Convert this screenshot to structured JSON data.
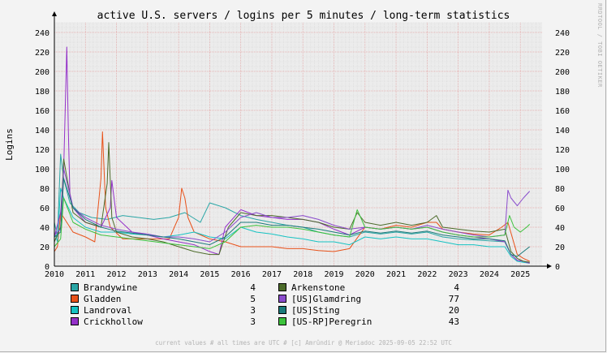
{
  "chart_data": {
    "type": "line",
    "title": "active U.S. servers / logins per 5 minutes / long-term statistics",
    "ylabel": "Logins",
    "ylim": [
      0,
      250
    ],
    "yticks": [
      0,
      20,
      40,
      60,
      80,
      100,
      120,
      140,
      160,
      180,
      200,
      220,
      240
    ],
    "xlim": [
      2010.0,
      2025.7
    ],
    "xticks": [
      2010,
      2011,
      2012,
      2013,
      2014,
      2015,
      2016,
      2017,
      2018,
      2019,
      2020,
      2021,
      2022,
      2023,
      2024,
      2025
    ],
    "xtick_labels": [
      "2010",
      "2011",
      "2012",
      "2013",
      "2014",
      "2015",
      "2016",
      "2017",
      "2018",
      "2019",
      "2020",
      "2021",
      "2022",
      "2023",
      "2024",
      "2025"
    ],
    "grid": true,
    "legend_position": "bottom",
    "series": [
      {
        "name": "Brandywine",
        "color": "#2aa6a6",
        "current": "4",
        "x": [
          2010.0,
          2010.1,
          2010.2,
          2010.3,
          2010.5,
          2010.8,
          2011.2,
          2011.7,
          2012.2,
          2012.7,
          2013.2,
          2013.7,
          2014.2,
          2014.7,
          2015.0,
          2015.5,
          2016.0,
          2016.5,
          2017.0,
          2017.5,
          2018.0,
          2018.5,
          2019.0,
          2019.5,
          2020.0,
          2020.5,
          2021.0,
          2021.5,
          2022.0,
          2022.5,
          2023.0,
          2023.5,
          2024.0,
          2024.5,
          2024.7,
          2024.9,
          2025.1,
          2025.3
        ],
        "y": [
          45,
          30,
          115,
          90,
          65,
          55,
          50,
          48,
          52,
          50,
          48,
          50,
          55,
          45,
          65,
          60,
          52,
          48,
          45,
          42,
          40,
          35,
          32,
          30,
          35,
          33,
          35,
          33,
          35,
          30,
          28,
          27,
          26,
          25,
          12,
          6,
          5,
          4
        ]
      },
      {
        "name": "Gladden",
        "color": "#e8521a",
        "current": "5",
        "x": [
          2010.0,
          2010.1,
          2010.2,
          2010.3,
          2010.4,
          2010.6,
          2011.0,
          2011.3,
          2011.5,
          2011.55,
          2011.65,
          2011.8,
          2012.2,
          2012.7,
          2013.2,
          2013.7,
          2014.0,
          2014.1,
          2014.2,
          2014.3,
          2014.5,
          2015.0,
          2015.5,
          2016.0,
          2016.5,
          2017.0,
          2017.5,
          2018.0,
          2018.5,
          2019.0,
          2019.5,
          2020.0,
          2020.5,
          2021.0,
          2021.5,
          2022.0,
          2022.3,
          2022.5,
          2023.0,
          2023.5,
          2024.0,
          2024.4,
          2024.6,
          2024.9,
          2025.1,
          2025.3
        ],
        "y": [
          15,
          20,
          55,
          50,
          45,
          35,
          30,
          25,
          90,
          138,
          60,
          40,
          28,
          28,
          28,
          28,
          50,
          80,
          70,
          50,
          35,
          28,
          25,
          20,
          20,
          20,
          18,
          18,
          16,
          15,
          18,
          40,
          38,
          42,
          40,
          45,
          45,
          38,
          35,
          33,
          32,
          40,
          45,
          12,
          8,
          5
        ]
      },
      {
        "name": "Landroval",
        "color": "#16c2c2",
        "current": "3",
        "x": [
          2010.0,
          2010.1,
          2010.2,
          2010.3,
          2010.6,
          2011.0,
          2011.5,
          2012.0,
          2012.5,
          2013.0,
          2013.5,
          2014.0,
          2014.5,
          2015.0,
          2015.5,
          2016.0,
          2016.5,
          2017.0,
          2017.5,
          2018.0,
          2018.5,
          2019.0,
          2019.5,
          2020.0,
          2020.5,
          2021.0,
          2021.5,
          2022.0,
          2022.5,
          2023.0,
          2023.5,
          2024.0,
          2024.5,
          2024.7,
          2024.9,
          2025.1,
          2025.3
        ],
        "y": [
          35,
          25,
          80,
          70,
          50,
          40,
          35,
          35,
          33,
          32,
          30,
          32,
          35,
          30,
          28,
          40,
          35,
          33,
          30,
          28,
          25,
          25,
          22,
          30,
          28,
          30,
          28,
          28,
          25,
          22,
          22,
          20,
          20,
          10,
          5,
          4,
          3
        ]
      },
      {
        "name": "Crickhollow",
        "color": "#9431c9",
        "current": "3",
        "x": [
          2010.0,
          2010.2,
          2010.3,
          2010.4,
          2010.45,
          2010.5,
          2010.6,
          2011.0,
          2011.5,
          2011.8,
          2011.85,
          2012.0,
          2012.5,
          2013.0,
          2013.5,
          2014.0,
          2014.5,
          2015.0,
          2015.3,
          2015.5,
          2016.0,
          2016.5,
          2017.0,
          2017.5,
          2018.0,
          2018.5,
          2019.0,
          2019.5,
          2020.0,
          2020.5,
          2021.0,
          2021.5,
          2022.0,
          2022.5,
          2023.0,
          2023.5,
          2024.0,
          2024.5,
          2024.7,
          2024.9,
          2025.1,
          2025.3
        ],
        "y": [
          30,
          55,
          100,
          225,
          140,
          75,
          60,
          45,
          40,
          60,
          88,
          50,
          35,
          32,
          28,
          25,
          22,
          15,
          12,
          40,
          58,
          52,
          50,
          48,
          48,
          45,
          38,
          32,
          40,
          38,
          40,
          38,
          40,
          35,
          32,
          30,
          28,
          25,
          12,
          6,
          5,
          3
        ]
      },
      {
        "name": "Arkenstone",
        "color": "#4c6b2a",
        "current": "4",
        "x": [
          2010.0,
          2010.2,
          2010.3,
          2010.6,
          2011.0,
          2011.5,
          2011.7,
          2011.75,
          2011.85,
          2012.0,
          2012.5,
          2013.0,
          2013.5,
          2014.0,
          2014.5,
          2015.0,
          2015.3,
          2015.6,
          2016.0,
          2016.5,
          2017.0,
          2017.5,
          2018.0,
          2018.5,
          2019.0,
          2019.5,
          2019.75,
          2020.0,
          2020.5,
          2021.0,
          2021.5,
          2022.0,
          2022.3,
          2022.5,
          2023.0,
          2023.5,
          2024.0,
          2024.5,
          2024.7,
          2024.9,
          2025.1,
          2025.3
        ],
        "y": [
          25,
          40,
          110,
          55,
          45,
          40,
          85,
          127,
          50,
          35,
          30,
          28,
          25,
          20,
          15,
          12,
          12,
          40,
          55,
          52,
          52,
          50,
          48,
          45,
          40,
          38,
          55,
          45,
          42,
          45,
          42,
          45,
          52,
          40,
          38,
          36,
          35,
          38,
          15,
          8,
          5,
          4
        ]
      },
      {
        "name": "[US]Glamdring",
        "color": "#8a4ccc",
        "current": "77",
        "x": [
          2010.0,
          2010.2,
          2010.3,
          2010.6,
          2011.0,
          2011.5,
          2012.0,
          2012.5,
          2013.0,
          2013.5,
          2014.0,
          2014.5,
          2015.0,
          2015.5,
          2016.0,
          2016.5,
          2017.0,
          2017.5,
          2018.0,
          2018.5,
          2019.0,
          2019.5,
          2020.0,
          2020.5,
          2021.0,
          2021.5,
          2022.0,
          2022.5,
          2023.0,
          2023.5,
          2024.0,
          2024.5,
          2024.6,
          2024.7,
          2024.9,
          2025.1,
          2025.3
        ],
        "y": [
          32,
          38,
          100,
          60,
          50,
          42,
          38,
          35,
          33,
          30,
          30,
          28,
          25,
          35,
          50,
          55,
          50,
          50,
          52,
          48,
          42,
          38,
          40,
          38,
          40,
          38,
          42,
          38,
          35,
          32,
          30,
          32,
          78,
          70,
          62,
          70,
          77
        ]
      },
      {
        "name": "[US]Sting",
        "color": "#1a7a7a",
        "current": "20",
        "x": [
          2010.0,
          2010.2,
          2010.3,
          2010.6,
          2011.0,
          2011.5,
          2012.0,
          2012.5,
          2013.0,
          2013.5,
          2014.0,
          2014.5,
          2015.0,
          2015.5,
          2016.0,
          2016.5,
          2017.0,
          2017.5,
          2018.0,
          2018.5,
          2019.0,
          2019.5,
          2020.0,
          2020.5,
          2021.0,
          2021.5,
          2022.0,
          2022.5,
          2023.0,
          2023.5,
          2024.0,
          2024.5,
          2024.7,
          2024.9,
          2025.1,
          2025.3
        ],
        "y": [
          30,
          35,
          90,
          60,
          48,
          40,
          36,
          34,
          32,
          30,
          28,
          25,
          22,
          30,
          45,
          45,
          42,
          42,
          40,
          38,
          35,
          32,
          36,
          34,
          36,
          34,
          36,
          32,
          30,
          28,
          28,
          26,
          12,
          10,
          15,
          20
        ]
      },
      {
        "name": "[US-RP]Peregrin",
        "color": "#3cc23c",
        "current": "43",
        "x": [
          2010.0,
          2010.2,
          2010.3,
          2010.6,
          2011.0,
          2011.5,
          2012.0,
          2012.5,
          2013.0,
          2013.5,
          2014.0,
          2014.5,
          2015.0,
          2015.5,
          2016.0,
          2016.5,
          2017.0,
          2017.5,
          2018.0,
          2018.5,
          2019.0,
          2019.5,
          2019.75,
          2020.0,
          2020.5,
          2021.0,
          2021.5,
          2022.0,
          2022.5,
          2023.0,
          2023.5,
          2024.0,
          2024.5,
          2024.65,
          2024.8,
          2025.0,
          2025.2,
          2025.3
        ],
        "y": [
          20,
          28,
          70,
          45,
          38,
          32,
          30,
          28,
          26,
          24,
          22,
          20,
          18,
          25,
          40,
          42,
          40,
          40,
          38,
          35,
          32,
          30,
          58,
          40,
          38,
          40,
          38,
          40,
          35,
          32,
          30,
          30,
          32,
          52,
          40,
          35,
          40,
          43
        ]
      }
    ]
  },
  "footer": "current values # all times are UTC # [c] Amrûndir @ Meriadoc 2025-09-05 22:52 UTC",
  "watermark": "RRDTOOL / TOBI OETIKER"
}
